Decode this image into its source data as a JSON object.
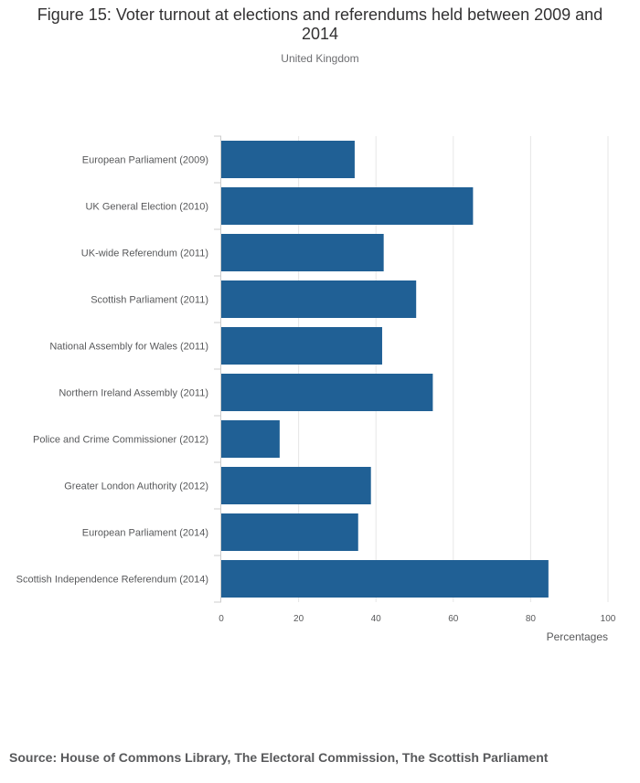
{
  "header": {
    "title": "Figure 15: Voter turnout at elections and referendums held between 2009 and 2014",
    "subtitle": "United Kingdom"
  },
  "footer": {
    "source": "Source: House of Commons Library, The Electoral Commission, The Scottish Parliament"
  },
  "colors": {
    "bar": "#206095",
    "grid": "#e6e6e6",
    "axis": "#cccccc",
    "label": "#58595b"
  },
  "chart_data": {
    "type": "bar",
    "orientation": "horizontal",
    "title": "Figure 15: Voter turnout at elections and referendums held between 2009 and 2014",
    "subtitle": "United Kingdom",
    "categories": [
      "European Parliament (2009)",
      "UK General Election (2010)",
      "UK-wide Referendum (2011)",
      "Scottish Parliament (2011)",
      "National Assembly for Wales (2011)",
      "Northern Ireland Assembly (2011)",
      "Police and Crime Commissioner (2012)",
      "Greater London Authority (2012)",
      "European Parliament (2014)",
      "Scottish Independence Referendum (2014)"
    ],
    "values": [
      34.5,
      65.1,
      42.0,
      50.4,
      41.6,
      54.7,
      15.1,
      38.7,
      35.4,
      84.6
    ],
    "xlabel": "Percentages",
    "ylabel": "",
    "xlim": [
      0,
      100
    ],
    "xticks": [
      0,
      20,
      40,
      60,
      80,
      100
    ],
    "grid": true,
    "legend": "none"
  }
}
